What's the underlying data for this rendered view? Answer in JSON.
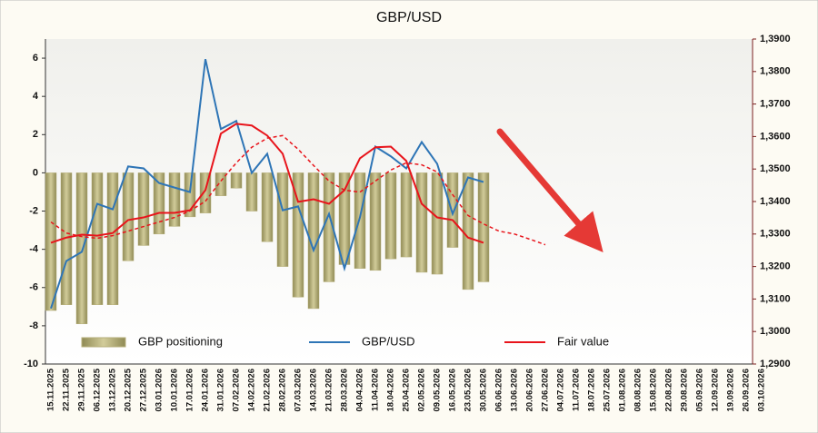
{
  "chart_data": {
    "type": "bar_line",
    "title": "GBP/USD",
    "categories": [
      "15.11.2025",
      "22.11.2025",
      "29.11.2025",
      "06.12.2025",
      "13.12.2025",
      "20.12.2025",
      "27.12.2025",
      "03.01.2026",
      "10.01.2026",
      "17.01.2026",
      "24.01.2026",
      "31.01.2026",
      "07.02.2026",
      "14.02.2026",
      "21.02.2026",
      "28.02.2026",
      "07.03.2026",
      "14.03.2026",
      "21.03.2026",
      "28.03.2026",
      "04.04.2026",
      "11.04.2026",
      "18.04.2026",
      "25.04.2026",
      "02.05.2026",
      "09.05.2026",
      "16.05.2026",
      "23.05.2026",
      "30.05.2026",
      "06.06.2026",
      "13.06.2026",
      "20.06.2026",
      "27.06.2026",
      "04.07.2026",
      "11.07.2026",
      "18.07.2026",
      "25.07.2026",
      "01.08.2026",
      "08.08.2026",
      "15.08.2026",
      "22.08.2026",
      "29.08.2026",
      "05.09.2026",
      "12.09.2026",
      "19.09.2026",
      "26.09.2026",
      "03.10.2026"
    ],
    "series": [
      {
        "name": "GBP positioning",
        "kind": "bar",
        "color": "#b5ae78",
        "axis": "y",
        "values": [
          -7.2,
          -6.9,
          -7.9,
          -6.9,
          -6.9,
          -4.6,
          -3.8,
          -3.2,
          -2.8,
          -2.3,
          -2.1,
          -1.2,
          -0.8,
          -2.0,
          -3.6,
          -4.9,
          -6.5,
          -7.1,
          -5.7,
          -4.8,
          -5.0,
          -5.1,
          -4.5,
          -4.4,
          -5.2,
          -5.3,
          -3.9,
          -6.1,
          -5.7,
          null,
          null,
          null,
          null,
          null,
          null,
          null,
          null,
          null,
          null,
          null,
          null,
          null,
          null,
          null,
          null,
          null,
          null
        ]
      },
      {
        "name": "GBP/USD",
        "kind": "line",
        "color": "#2e75b6",
        "axis": "y2",
        "style": "solid",
        "values": [
          1.3071,
          1.3217,
          1.3245,
          1.3393,
          1.3376,
          1.3508,
          1.3502,
          1.3457,
          1.3443,
          1.3429,
          1.3838,
          1.3623,
          1.3648,
          1.3488,
          1.3547,
          1.3373,
          1.3385,
          1.325,
          1.3362,
          1.3194,
          1.3351,
          1.3569,
          1.3539,
          1.3502,
          1.3583,
          1.3516,
          1.3362,
          1.3474,
          1.346,
          null,
          null,
          null,
          null,
          null,
          null,
          null,
          null,
          null,
          null,
          null,
          null,
          null,
          null,
          null,
          null,
          null,
          null
        ]
      },
      {
        "name": "Fair value",
        "kind": "line",
        "color": "#e8141b",
        "axis": "y2",
        "style": "solid",
        "values": [
          1.3273,
          1.3289,
          1.3298,
          1.3295,
          1.3303,
          1.3343,
          1.3351,
          1.3365,
          1.3365,
          1.3373,
          1.3435,
          1.3609,
          1.3639,
          1.3634,
          1.3603,
          1.3547,
          1.3399,
          1.3407,
          1.3393,
          1.3435,
          1.3533,
          1.3567,
          1.3569,
          1.3525,
          1.3393,
          1.3351,
          1.3343,
          1.3289,
          1.3273,
          null,
          null,
          null,
          null,
          null,
          null,
          null,
          null,
          null,
          null,
          null,
          null,
          null,
          null,
          null,
          null,
          null,
          null
        ]
      },
      {
        "kind": "line",
        "color": "#e8141b",
        "axis": "y2",
        "style": "dashed",
        "values": [
          1.3337,
          1.3303,
          1.3292,
          1.3287,
          1.3295,
          1.3309,
          1.3323,
          1.3337,
          1.3351,
          1.3371,
          1.3401,
          1.3463,
          1.3519,
          1.3567,
          1.3595,
          1.3603,
          1.3561,
          1.3511,
          1.3463,
          1.3435,
          1.3429,
          1.3463,
          1.3497,
          1.3519,
          1.3513,
          1.3491,
          1.3421,
          1.3357,
          1.3331,
          1.3309,
          1.33,
          1.3284,
          1.3267,
          null,
          null,
          null,
          null,
          null,
          null,
          null,
          null,
          null,
          null,
          null,
          null,
          null,
          null
        ]
      }
    ],
    "ylim": [
      -10,
      7
    ],
    "yticks": [
      -10,
      -8,
      -6,
      -4,
      -2,
      0,
      2,
      4,
      6
    ],
    "y2lim": [
      1.29,
      1.39
    ],
    "y2ticks": [
      {
        "value": 1.29,
        "label": "1,2900"
      },
      {
        "value": 1.3,
        "label": "1,3000"
      },
      {
        "value": 1.31,
        "label": "1,3100"
      },
      {
        "value": 1.32,
        "label": "1,3200"
      },
      {
        "value": 1.33,
        "label": "1,3300"
      },
      {
        "value": 1.34,
        "label": "1,3400"
      },
      {
        "value": 1.35,
        "label": "1,3500"
      },
      {
        "value": 1.36,
        "label": "1,3600"
      },
      {
        "value": 1.37,
        "label": "1,3700"
      },
      {
        "value": 1.38,
        "label": "1,3800"
      },
      {
        "value": 1.39,
        "label": "1,3900"
      }
    ],
    "legend": "bottom",
    "grid": false
  }
}
